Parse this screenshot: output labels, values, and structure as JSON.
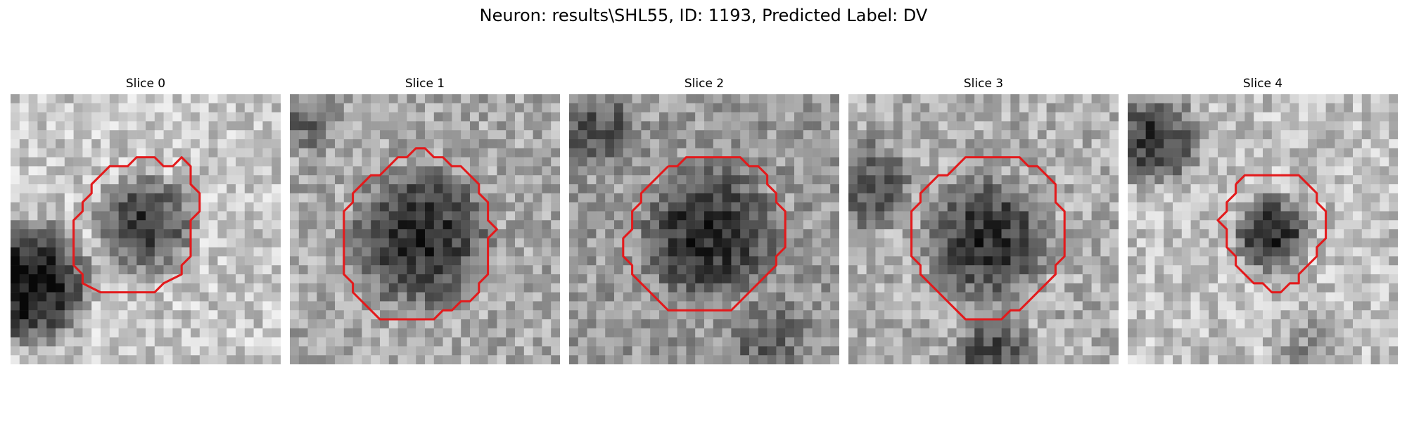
{
  "figure": {
    "suptitle": "Neuron: results\\SHL55, ID: 1193, Predicted Label: DV",
    "outline_color": "#e31a1c",
    "panels": [
      {
        "title": "Slice 0"
      },
      {
        "title": "Slice 1"
      },
      {
        "title": "Slice 2"
      },
      {
        "title": "Slice 3"
      },
      {
        "title": "Slice 4"
      }
    ]
  }
}
